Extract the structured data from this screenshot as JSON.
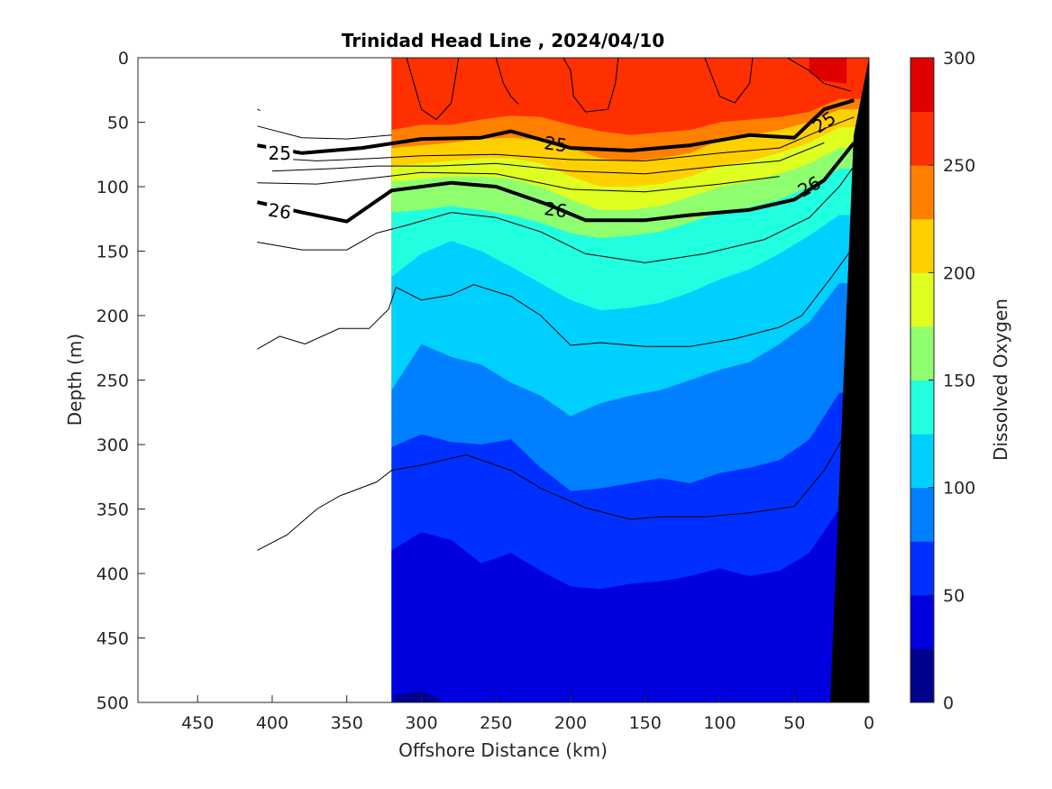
{
  "chart_data": {
    "type": "heatmap",
    "title": "Trinidad Head Line , 2024/04/10",
    "xlabel": "Offshore Distance (km)",
    "ylabel": "Depth (m)",
    "colorbar_label": "Dissolved Oxygen",
    "xlim": [
      490,
      0
    ],
    "ylim": [
      0,
      500
    ],
    "x_reversed": true,
    "y_reversed": true,
    "x_ticks": [
      450,
      400,
      350,
      300,
      250,
      200,
      150,
      100,
      50,
      0
    ],
    "y_ticks": [
      0,
      50,
      100,
      150,
      200,
      250,
      300,
      350,
      400,
      450,
      500
    ],
    "colorbar_ticks": [
      0,
      50,
      100,
      150,
      200,
      250,
      300
    ],
    "color_levels": [
      0,
      25,
      50,
      75,
      100,
      125,
      150,
      175,
      200,
      225,
      250,
      275,
      300
    ],
    "colormap": [
      "#00008f",
      "#0000df",
      "#0030ff",
      "#0080ff",
      "#00d0ff",
      "#20ffdf",
      "#8fff70",
      "#dfff20",
      "#ffd000",
      "#ff8000",
      "#ff3000",
      "#df0000"
    ],
    "data_extent_km": [
      320,
      0
    ],
    "x_stations_km": [
      320,
      300,
      280,
      260,
      240,
      220,
      200,
      180,
      160,
      140,
      120,
      100,
      80,
      60,
      40,
      20
    ],
    "oxygen_level_depths_m": {
      "275": [
        -1,
        -1,
        -1,
        -1,
        -1,
        -1,
        -1,
        -1,
        -1,
        -1,
        -1,
        -1,
        -1,
        -1,
        -1,
        16
      ],
      "250": [
        56,
        52,
        52,
        48,
        45,
        46,
        52,
        57,
        60,
        58,
        56,
        50,
        48,
        46,
        42,
        32
      ],
      "225": [
        70,
        68,
        66,
        63,
        62,
        64,
        70,
        78,
        80,
        78,
        74,
        64,
        60,
        56,
        50,
        40
      ],
      "200": [
        84,
        82,
        80,
        78,
        78,
        82,
        92,
        100,
        100,
        98,
        92,
        84,
        80,
        74,
        66,
        54
      ],
      "175": [
        96,
        94,
        92,
        92,
        94,
        100,
        110,
        118,
        118,
        115,
        108,
        100,
        96,
        90,
        82,
        70
      ],
      "150": [
        120,
        118,
        115,
        118,
        122,
        128,
        136,
        140,
        138,
        135,
        128,
        120,
        116,
        110,
        100,
        86
      ],
      "125": [
        170,
        152,
        142,
        150,
        162,
        175,
        188,
        196,
        194,
        190,
        182,
        172,
        164,
        152,
        138,
        122
      ],
      "100": [
        258,
        222,
        232,
        238,
        252,
        262,
        278,
        268,
        262,
        258,
        250,
        242,
        236,
        222,
        205,
        175
      ],
      "75": [
        302,
        292,
        298,
        300,
        296,
        318,
        336,
        334,
        330,
        326,
        330,
        322,
        318,
        312,
        296,
        260
      ],
      "50": [
        382,
        368,
        374,
        392,
        384,
        398,
        410,
        412,
        408,
        406,
        402,
        396,
        402,
        398,
        384,
        350
      ]
    },
    "isopycnals": [
      {
        "label": "25",
        "points": [
          [
            410,
            68
          ],
          [
            380,
            74
          ],
          [
            340,
            70
          ],
          [
            300,
            63
          ],
          [
            260,
            62
          ],
          [
            240,
            57
          ],
          [
            200,
            70
          ],
          [
            160,
            72
          ],
          [
            120,
            68
          ],
          [
            80,
            60
          ],
          [
            50,
            62
          ],
          [
            30,
            40
          ],
          [
            10,
            33
          ]
        ]
      },
      {
        "label": "26",
        "points": [
          [
            410,
            112
          ],
          [
            380,
            120
          ],
          [
            350,
            127
          ],
          [
            335,
            115
          ],
          [
            320,
            103
          ],
          [
            280,
            97
          ],
          [
            250,
            100
          ],
          [
            215,
            114
          ],
          [
            190,
            126
          ],
          [
            150,
            126
          ],
          [
            120,
            122
          ],
          [
            80,
            118
          ],
          [
            50,
            110
          ],
          [
            30,
            95
          ],
          [
            10,
            66
          ]
        ]
      }
    ]
  }
}
